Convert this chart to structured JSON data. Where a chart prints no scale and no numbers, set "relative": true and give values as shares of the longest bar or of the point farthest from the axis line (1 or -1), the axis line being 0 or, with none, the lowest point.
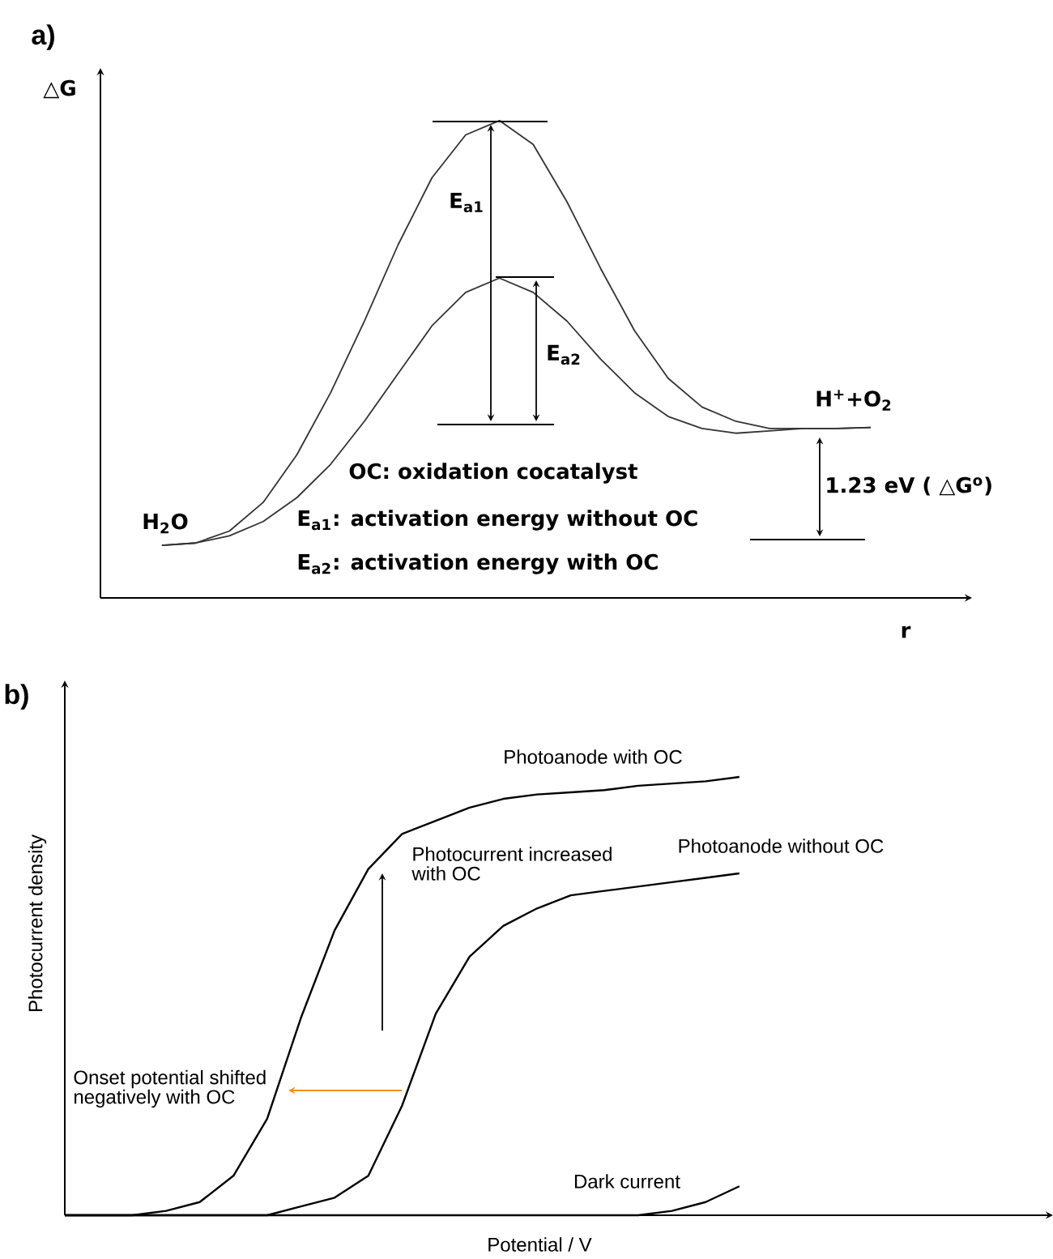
{
  "chart_data": [
    {
      "type": "line",
      "title": "a)",
      "xlabel": "r",
      "ylabel": "△G",
      "relative": true,
      "categories": [
        null,
        null,
        null,
        null,
        null,
        null,
        null,
        null,
        null,
        null,
        null,
        null,
        null,
        null,
        null,
        null,
        null,
        null,
        null,
        null,
        null,
        null
      ],
      "series": [
        {
          "color": "#333333",
          "values": [
            0.11,
            0.115,
            0.14,
            0.2,
            0.3,
            0.43,
            0.58,
            0.74,
            0.88,
            0.97,
            1.0,
            0.95,
            0.83,
            0.69,
            0.56,
            0.46,
            0.4,
            0.37,
            0.355,
            0.355,
            0.355,
            0.357
          ]
        },
        {
          "color": "#333333",
          "values": [
            0.11,
            0.115,
            0.13,
            0.16,
            0.21,
            0.28,
            0.37,
            0.47,
            0.57,
            0.64,
            0.67,
            0.64,
            0.58,
            0.5,
            0.43,
            0.38,
            0.355,
            0.345,
            0.35,
            0.355,
            0.355,
            0.357
          ]
        }
      ],
      "annotations": [
        "E$_{a1}$",
        "E$_{a2}$",
        "H$^{+}$+O$_{2}$",
        "H$_{2}$O",
        "OC: oxidation cocatalyst",
        "E$_{a1}$: activation energy without OC",
        "E$_{a2}$: activation energy with OC",
        "1.23 eV  ( △G$^{o}$)"
      ]
    },
    {
      "type": "line",
      "title": "b)",
      "xlabel": "Potential / V",
      "ylabel": "Photocurrent density",
      "relative": true,
      "categories": [
        null,
        null,
        null,
        null,
        null,
        null,
        null,
        null,
        null,
        null,
        null,
        null,
        null,
        null,
        null,
        null,
        null,
        null,
        null,
        null,
        null,
        null
      ],
      "series": [
        {
          "name": "Photoanode with OC",
          "color": "#000000",
          "values": [
            0,
            0,
            0,
            0.01,
            0.03,
            0.09,
            0.22,
            0.45,
            0.65,
            0.79,
            0.87,
            0.9,
            0.93,
            0.95,
            0.96,
            0.965,
            0.97,
            0.98,
            0.985,
            0.99,
            1.0,
            null
          ]
        },
        {
          "name": "Photoanode without OC",
          "color": "#000000",
          "values": [
            0,
            0,
            0,
            0,
            0,
            0,
            0,
            0.02,
            0.04,
            0.09,
            0.25,
            0.46,
            0.59,
            0.66,
            0.7,
            0.73,
            0.74,
            0.75,
            0.76,
            0.77,
            0.78,
            null
          ]
        },
        {
          "name": "Dark current",
          "color": "#000000",
          "values": [
            0,
            0,
            0,
            0,
            0,
            0,
            0,
            0,
            0,
            0,
            0,
            0,
            0,
            0,
            0,
            0,
            0,
            0,
            0.01,
            0.03,
            0.066,
            null
          ]
        }
      ],
      "annotations": [
        "Photocurrent increased with OC",
        "Onset potential shifted negatively with OC"
      ]
    }
  ]
}
